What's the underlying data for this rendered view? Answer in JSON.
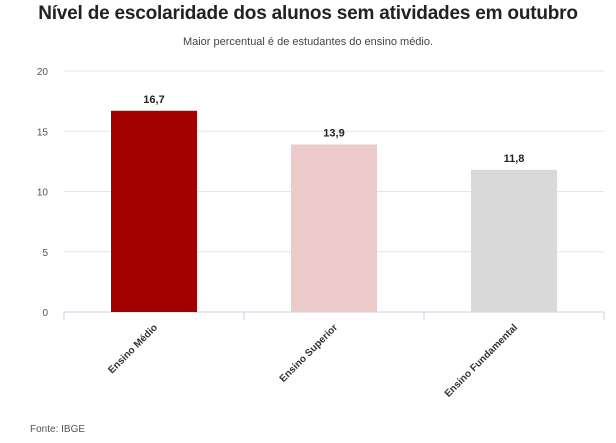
{
  "chart_data": {
    "type": "bar",
    "title": "Nível de escolaridade dos alunos sem atividades em outubro",
    "subtitle": "Maior percentual é de estudantes do ensino médio.",
    "categories": [
      "Ensino Médio",
      "Ensino Superior",
      "Ensino Fundamental"
    ],
    "values": [
      16.7,
      13.9,
      11.8
    ],
    "data_labels": [
      "16,7",
      "13,9",
      "11,8"
    ],
    "colors": [
      "#a50000",
      "#eecbcb",
      "#d9d9d9"
    ],
    "ylim": [
      0,
      20
    ],
    "yticks": [
      0,
      5,
      10,
      15,
      20
    ],
    "grid": true,
    "legend": false,
    "source": "Fonte: IBGE"
  }
}
